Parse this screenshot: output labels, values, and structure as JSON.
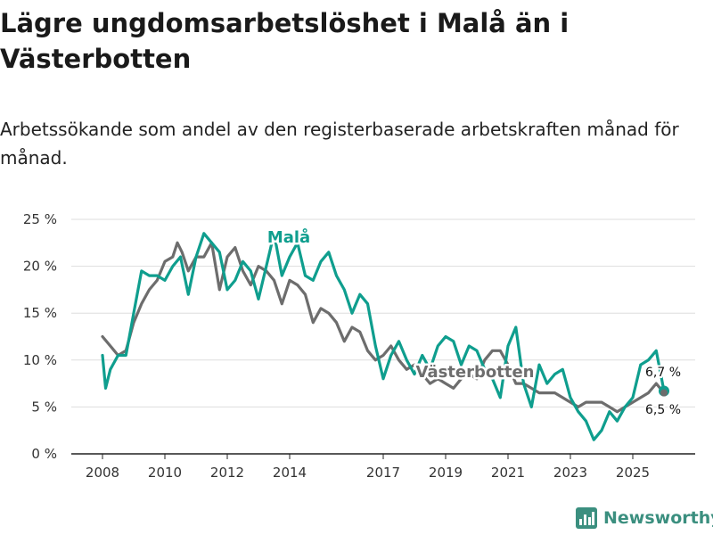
{
  "title": "Lägre ungdomsarbetslöshet i Malå än i Västerbotten",
  "subtitle": "Arbetssökande som andel av den registerbaserade arbetskraften månad för månad.",
  "brand": "Newsworthy",
  "colors": {
    "mala": "#0f9e8e",
    "vasterbotten": "#6d6d6d",
    "grid": "#dddddd",
    "brand": "#3b8f7f"
  },
  "chart_data": {
    "type": "line",
    "title": "Lägre ungdomsarbetslöshet i Malå än i Västerbotten",
    "xlabel": "",
    "ylabel": "",
    "xlim": [
      2007.0,
      2027.0
    ],
    "ylim": [
      0,
      25
    ],
    "y_ticks": [
      0,
      5,
      10,
      15,
      20,
      25
    ],
    "y_tick_labels": [
      "0 %",
      "5 %",
      "10 %",
      "15 %",
      "20 %",
      "25 %"
    ],
    "x_ticks": [
      2008,
      2010,
      2012,
      2014,
      2017,
      2019,
      2021,
      2023,
      2025
    ],
    "x_tick_labels": [
      "2008",
      "2010",
      "2012",
      "2014",
      "2017",
      "2019",
      "2021",
      "2023",
      "2025"
    ],
    "grid": true,
    "series": [
      {
        "name": "Västerbotten",
        "color": "#6d6d6d",
        "end_label": "6,5 %",
        "points": [
          [
            2008.0,
            12.5
          ],
          [
            2008.25,
            11.5
          ],
          [
            2008.5,
            10.5
          ],
          [
            2008.75,
            11.0
          ],
          [
            2009.0,
            14.0
          ],
          [
            2009.25,
            16.0
          ],
          [
            2009.5,
            17.5
          ],
          [
            2009.75,
            18.5
          ],
          [
            2010.0,
            20.5
          ],
          [
            2010.25,
            21.0
          ],
          [
            2010.4,
            22.5
          ],
          [
            2010.55,
            21.5
          ],
          [
            2010.75,
            19.5
          ],
          [
            2011.0,
            21.0
          ],
          [
            2011.25,
            21.0
          ],
          [
            2011.5,
            22.5
          ],
          [
            2011.75,
            17.5
          ],
          [
            2012.0,
            21.0
          ],
          [
            2012.25,
            22.0
          ],
          [
            2012.5,
            19.5
          ],
          [
            2012.75,
            18.0
          ],
          [
            2013.0,
            20.0
          ],
          [
            2013.25,
            19.5
          ],
          [
            2013.5,
            18.5
          ],
          [
            2013.75,
            16.0
          ],
          [
            2014.0,
            18.5
          ],
          [
            2014.25,
            18.0
          ],
          [
            2014.5,
            17.0
          ],
          [
            2014.75,
            14.0
          ],
          [
            2015.0,
            15.5
          ],
          [
            2015.25,
            15.0
          ],
          [
            2015.5,
            14.0
          ],
          [
            2015.75,
            12.0
          ],
          [
            2016.0,
            13.5
          ],
          [
            2016.25,
            13.0
          ],
          [
            2016.5,
            11.0
          ],
          [
            2016.75,
            10.0
          ],
          [
            2017.0,
            10.5
          ],
          [
            2017.25,
            11.5
          ],
          [
            2017.5,
            10.0
          ],
          [
            2017.75,
            9.0
          ],
          [
            2018.0,
            9.5
          ],
          [
            2018.25,
            8.5
          ],
          [
            2018.5,
            7.5
          ],
          [
            2018.75,
            8.0
          ],
          [
            2019.0,
            7.5
          ],
          [
            2019.25,
            7.0
          ],
          [
            2019.5,
            8.0
          ],
          [
            2019.75,
            8.5
          ],
          [
            2020.0,
            8.0
          ],
          [
            2020.25,
            10.0
          ],
          [
            2020.5,
            11.0
          ],
          [
            2020.75,
            11.0
          ],
          [
            2021.0,
            9.5
          ],
          [
            2021.25,
            7.5
          ],
          [
            2021.5,
            7.5
          ],
          [
            2021.75,
            7.0
          ],
          [
            2022.0,
            6.5
          ],
          [
            2022.25,
            6.5
          ],
          [
            2022.5,
            6.5
          ],
          [
            2022.75,
            6.0
          ],
          [
            2023.0,
            5.5
          ],
          [
            2023.25,
            5.0
          ],
          [
            2023.5,
            5.5
          ],
          [
            2023.75,
            5.5
          ],
          [
            2024.0,
            5.5
          ],
          [
            2024.25,
            5.0
          ],
          [
            2024.5,
            4.5
          ],
          [
            2024.75,
            5.0
          ],
          [
            2025.0,
            5.5
          ],
          [
            2025.25,
            6.0
          ],
          [
            2025.5,
            6.5
          ],
          [
            2025.75,
            7.5
          ],
          [
            2026.0,
            6.5
          ]
        ]
      },
      {
        "name": "Malå",
        "color": "#0f9e8e",
        "end_label": "6,7 %",
        "points": [
          [
            2008.0,
            10.5
          ],
          [
            2008.1,
            7.0
          ],
          [
            2008.25,
            9.0
          ],
          [
            2008.5,
            10.5
          ],
          [
            2008.75,
            10.5
          ],
          [
            2009.0,
            15.0
          ],
          [
            2009.25,
            19.5
          ],
          [
            2009.5,
            19.0
          ],
          [
            2009.75,
            19.0
          ],
          [
            2010.0,
            18.5
          ],
          [
            2010.25,
            20.0
          ],
          [
            2010.5,
            21.0
          ],
          [
            2010.75,
            17.0
          ],
          [
            2011.0,
            21.0
          ],
          [
            2011.25,
            23.5
          ],
          [
            2011.5,
            22.5
          ],
          [
            2011.75,
            21.5
          ],
          [
            2012.0,
            17.5
          ],
          [
            2012.25,
            18.5
          ],
          [
            2012.5,
            20.5
          ],
          [
            2012.75,
            19.5
          ],
          [
            2013.0,
            16.5
          ],
          [
            2013.25,
            20.0
          ],
          [
            2013.5,
            23.5
          ],
          [
            2013.75,
            19.0
          ],
          [
            2014.0,
            21.0
          ],
          [
            2014.25,
            22.5
          ],
          [
            2014.5,
            19.0
          ],
          [
            2014.75,
            18.5
          ],
          [
            2015.0,
            20.5
          ],
          [
            2015.25,
            21.5
          ],
          [
            2015.5,
            19.0
          ],
          [
            2015.75,
            17.5
          ],
          [
            2016.0,
            15.0
          ],
          [
            2016.25,
            17.0
          ],
          [
            2016.5,
            16.0
          ],
          [
            2016.75,
            11.5
          ],
          [
            2017.0,
            8.0
          ],
          [
            2017.25,
            10.5
          ],
          [
            2017.5,
            12.0
          ],
          [
            2017.75,
            10.0
          ],
          [
            2018.0,
            8.5
          ],
          [
            2018.25,
            10.5
          ],
          [
            2018.5,
            9.0
          ],
          [
            2018.75,
            11.5
          ],
          [
            2019.0,
            12.5
          ],
          [
            2019.25,
            12.0
          ],
          [
            2019.5,
            9.5
          ],
          [
            2019.75,
            11.5
          ],
          [
            2020.0,
            11.0
          ],
          [
            2020.25,
            9.0
          ],
          [
            2020.5,
            8.0
          ],
          [
            2020.75,
            6.0
          ],
          [
            2021.0,
            11.5
          ],
          [
            2021.25,
            13.5
          ],
          [
            2021.5,
            7.5
          ],
          [
            2021.75,
            5.0
          ],
          [
            2022.0,
            9.5
          ],
          [
            2022.25,
            7.5
          ],
          [
            2022.5,
            8.5
          ],
          [
            2022.75,
            9.0
          ],
          [
            2023.0,
            6.0
          ],
          [
            2023.25,
            4.5
          ],
          [
            2023.5,
            3.5
          ],
          [
            2023.75,
            1.5
          ],
          [
            2024.0,
            2.5
          ],
          [
            2024.25,
            4.5
          ],
          [
            2024.5,
            3.5
          ],
          [
            2024.75,
            5.0
          ],
          [
            2025.0,
            6.0
          ],
          [
            2025.25,
            9.5
          ],
          [
            2025.5,
            10.0
          ],
          [
            2025.75,
            11.0
          ],
          [
            2026.0,
            6.7
          ]
        ]
      }
    ]
  }
}
